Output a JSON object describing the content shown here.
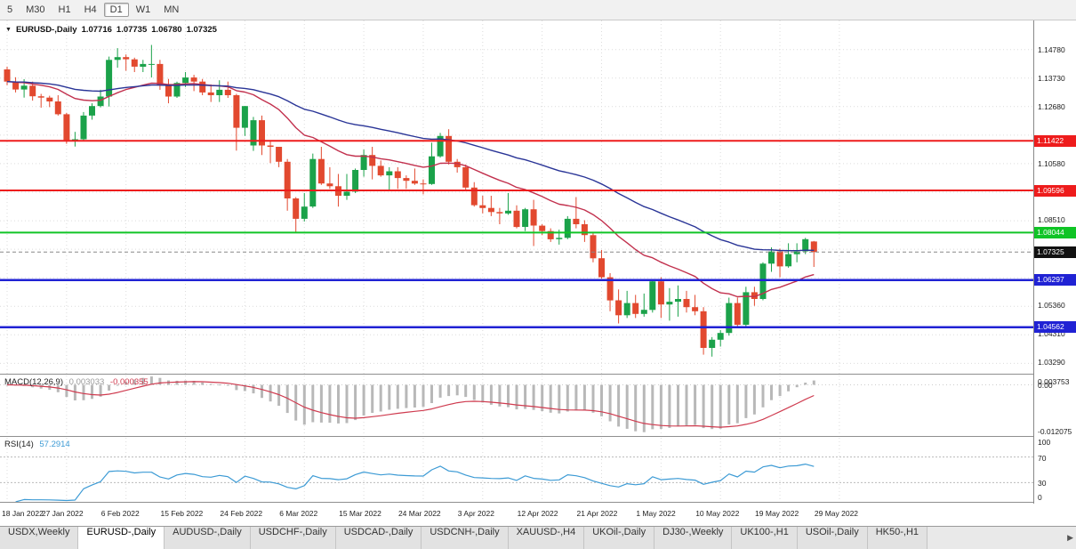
{
  "toolbar": {
    "timeframes": [
      {
        "label": "5",
        "active": false
      },
      {
        "label": "M30",
        "active": false
      },
      {
        "label": "H1",
        "active": false
      },
      {
        "label": "H4",
        "active": false
      },
      {
        "label": "D1",
        "active": true
      },
      {
        "label": "W1",
        "active": false
      },
      {
        "label": "MN",
        "active": false
      }
    ]
  },
  "chart_header": {
    "collapse_icon": "▼",
    "title": "EURUSD-,Daily",
    "open": "1.07716",
    "high": "1.07735",
    "low": "1.06780",
    "close": "1.07325"
  },
  "macd_panel": {
    "label": "MACD(12,26,9)",
    "main_value": "0.003033",
    "signal_value": "-0.000355",
    "axis_max": "0.003753",
    "axis_zero": "0.00",
    "axis_min": "-0.012075"
  },
  "rsi_panel": {
    "label": "RSI(14)",
    "value": "57.2914",
    "axis": [
      "100",
      "70",
      "30",
      "0"
    ],
    "levels": [
      70,
      30
    ]
  },
  "tabs": {
    "items": [
      {
        "label": "USDX,Weekly",
        "active": false
      },
      {
        "label": "EURUSD-,Daily",
        "active": true
      },
      {
        "label": "AUDUSD-,Daily",
        "active": false
      },
      {
        "label": "USDCHF-,Daily",
        "active": false
      },
      {
        "label": "USDCAD-,Daily",
        "active": false
      },
      {
        "label": "USDCNH-,Daily",
        "active": false
      },
      {
        "label": "XAUUSD-,H4",
        "active": false
      },
      {
        "label": "UKOil-,Daily",
        "active": false
      },
      {
        "label": "DJ30-,Weekly",
        "active": false
      },
      {
        "label": "UK100-,H1",
        "active": false
      },
      {
        "label": "USOil-,Daily",
        "active": false
      },
      {
        "label": "HK50-,H1",
        "active": false
      }
    ],
    "scroll_right_icon": "▶"
  },
  "chart_data": {
    "type": "candlestick",
    "symbol": "EURUSD-",
    "timeframe": "Daily",
    "title": "EURUSD-,Daily",
    "y_range": [
      1.0285,
      1.1585
    ],
    "current_price": 1.07325,
    "price_ticks": [
      {
        "label": "1.14780",
        "price": 1.1478
      },
      {
        "label": "1.13730",
        "price": 1.1373
      },
      {
        "label": "1.12680",
        "price": 1.1268
      },
      {
        "label": "1.10580",
        "price": 1.1058
      },
      {
        "label": "1.08510",
        "price": 1.0851
      },
      {
        "label": "1.05360",
        "price": 1.0536
      },
      {
        "label": "1.04310",
        "price": 1.0431
      },
      {
        "label": "1.03290",
        "price": 1.0329
      }
    ],
    "price_badges": [
      {
        "label": "1.11422",
        "price": 1.11422,
        "color": "#ee1c1c"
      },
      {
        "label": "1.09596",
        "price": 1.09596,
        "color": "#ee1c1c"
      },
      {
        "label": "1.08044",
        "price": 1.08044,
        "color": "#10c426"
      },
      {
        "label": "1.07325",
        "price": 1.07325,
        "color": "#111111"
      },
      {
        "label": "1.06297",
        "price": 1.06297,
        "color": "#2022d4"
      },
      {
        "label": "1.04562",
        "price": 1.04562,
        "color": "#2022d4"
      }
    ],
    "levels": [
      {
        "price": 1.11422,
        "color": "#ee1c1c",
        "width": 2
      },
      {
        "price": 1.09596,
        "color": "#ee1c1c",
        "width": 2
      },
      {
        "price": 1.08044,
        "color": "#10c426",
        "width": 2
      },
      {
        "price": 1.06297,
        "color": "#2022d4",
        "width": 2.5
      },
      {
        "price": 1.04562,
        "color": "#2022d4",
        "width": 2.5
      }
    ],
    "date_ticks": [
      "18 Jan 2022",
      "27 Jan 2022",
      "6 Feb 2022",
      "15 Feb 2022",
      "24 Feb 2022",
      "6 Mar 2022",
      "15 Mar 2022",
      "24 Mar 2022",
      "3 Apr 2022",
      "12 Apr 2022",
      "21 Apr 2022",
      "1 May 2022",
      "10 May 2022",
      "19 May 2022",
      "29 May 2022"
    ],
    "moving_averages": [
      {
        "period": 20,
        "color": "#c2314e"
      },
      {
        "period": 50,
        "color": "#2a3597"
      }
    ],
    "indicators": {
      "macd": {
        "fast": 12,
        "slow": 26,
        "signal": 9
      },
      "rsi": {
        "period": 14,
        "levels": [
          70,
          30
        ]
      }
    },
    "colors": {
      "bull": "#1ba24a",
      "bear": "#e2492f",
      "grid": "#dcdcdc",
      "macd_bar": "#b8b8b8",
      "macd_signal": "#cf3b4f",
      "rsi_line": "#3d9bd5"
    },
    "candles": [
      [
        1.1405,
        1.1415,
        1.1347,
        1.136
      ],
      [
        1.136,
        1.1376,
        1.132,
        1.1331
      ],
      [
        1.1331,
        1.1369,
        1.1301,
        1.1345
      ],
      [
        1.1345,
        1.136,
        1.129,
        1.1306
      ],
      [
        1.1306,
        1.1315,
        1.1264,
        1.1301
      ],
      [
        1.1301,
        1.1308,
        1.1266,
        1.1287
      ],
      [
        1.1287,
        1.131,
        1.1235,
        1.124
      ],
      [
        1.124,
        1.1245,
        1.1131,
        1.1145
      ],
      [
        1.1145,
        1.1175,
        1.1121,
        1.1148
      ],
      [
        1.1148,
        1.1248,
        1.114,
        1.1235
      ],
      [
        1.1235,
        1.128,
        1.122,
        1.127
      ],
      [
        1.127,
        1.133,
        1.1265,
        1.1305
      ],
      [
        1.1305,
        1.1452,
        1.1268,
        1.144
      ],
      [
        1.144,
        1.1483,
        1.1411,
        1.145
      ],
      [
        1.145,
        1.146,
        1.14,
        1.1442
      ],
      [
        1.1442,
        1.1448,
        1.1395,
        1.1415
      ],
      [
        1.1415,
        1.144,
        1.1395,
        1.1425
      ],
      [
        1.1425,
        1.1495,
        1.1375,
        1.1425
      ],
      [
        1.1425,
        1.144,
        1.133,
        1.1345
      ],
      [
        1.1345,
        1.137,
        1.128,
        1.1305
      ],
      [
        1.1305,
        1.136,
        1.13,
        1.1355
      ],
      [
        1.1355,
        1.1395,
        1.134,
        1.1375
      ],
      [
        1.1375,
        1.1385,
        1.1325,
        1.136
      ],
      [
        1.136,
        1.137,
        1.131,
        1.132
      ],
      [
        1.132,
        1.135,
        1.1285,
        1.131
      ],
      [
        1.131,
        1.1365,
        1.1285,
        1.133
      ],
      [
        1.133,
        1.136,
        1.13,
        1.131
      ],
      [
        1.131,
        1.1315,
        1.1106,
        1.119
      ],
      [
        1.119,
        1.127,
        1.116,
        1.127
      ],
      [
        1.1125,
        1.123,
        1.1105,
        1.1218
      ],
      [
        1.1218,
        1.1235,
        1.109,
        1.1125
      ],
      [
        1.1125,
        1.114,
        1.106,
        1.112
      ],
      [
        1.112,
        1.112,
        1.1045,
        1.1065
      ],
      [
        1.1065,
        1.1075,
        1.0885,
        1.093
      ],
      [
        1.093,
        1.0935,
        1.0806,
        1.0855
      ],
      [
        1.0855,
        1.095,
        1.0845,
        1.09
      ],
      [
        1.09,
        1.1095,
        1.0895,
        1.1075
      ],
      [
        1.1075,
        1.112,
        1.098,
        1.0985
      ],
      [
        1.0985,
        1.1045,
        1.0965,
        1.0975
      ],
      [
        1.0975,
        1.102,
        1.09,
        1.094
      ],
      [
        1.094,
        1.102,
        1.0925,
        1.0955
      ],
      [
        1.0955,
        1.104,
        1.095,
        1.1035
      ],
      [
        1.1035,
        1.111,
        1.101,
        1.109
      ],
      [
        1.109,
        1.112,
        1.1,
        1.105
      ],
      [
        1.105,
        1.107,
        1.101,
        1.1015
      ],
      [
        1.1015,
        1.1045,
        1.096,
        1.103
      ],
      [
        1.103,
        1.1045,
        1.0965,
        1.1005
      ],
      [
        1.1005,
        1.1015,
        1.0965,
        1.0995
      ],
      [
        1.0995,
        1.104,
        1.098,
        1.0985
      ],
      [
        1.0985,
        1.1,
        1.0945,
        1.0983
      ],
      [
        1.0983,
        1.1135,
        1.098,
        1.1085
      ],
      [
        1.1085,
        1.1171,
        1.108,
        1.116
      ],
      [
        1.116,
        1.1185,
        1.1055,
        1.1065
      ],
      [
        1.1065,
        1.1075,
        1.1025,
        1.1045
      ],
      [
        1.1045,
        1.1055,
        1.096,
        1.097
      ],
      [
        1.097,
        1.099,
        1.09,
        1.0905
      ],
      [
        1.0905,
        1.094,
        1.0875,
        1.0895
      ],
      [
        1.0895,
        1.094,
        1.0865,
        1.088
      ],
      [
        1.088,
        1.0895,
        1.0835,
        1.0875
      ],
      [
        1.0875,
        1.095,
        1.087,
        1.0885
      ],
      [
        1.0885,
        1.0905,
        1.082,
        1.0825
      ],
      [
        1.0825,
        1.0895,
        1.081,
        1.089
      ],
      [
        1.089,
        1.0925,
        1.0755,
        1.083
      ],
      [
        1.083,
        1.0835,
        1.0795,
        1.081
      ],
      [
        1.081,
        1.082,
        1.077,
        1.078
      ],
      [
        1.078,
        1.0815,
        1.076,
        1.0785
      ],
      [
        1.0785,
        1.0865,
        1.078,
        1.0855
      ],
      [
        1.0855,
        1.0935,
        1.082,
        1.0835
      ],
      [
        1.0835,
        1.085,
        1.077,
        1.0795
      ],
      [
        1.0795,
        1.0805,
        1.0695,
        1.071
      ],
      [
        1.071,
        1.074,
        1.0635,
        1.064
      ],
      [
        1.064,
        1.0655,
        1.0515,
        1.0555
      ],
      [
        1.0555,
        1.0595,
        1.047,
        1.05
      ],
      [
        1.05,
        1.059,
        1.049,
        1.0545
      ],
      [
        1.0545,
        1.0575,
        1.049,
        1.0505
      ],
      [
        1.0505,
        1.058,
        1.0495,
        1.052
      ],
      [
        1.052,
        1.063,
        1.051,
        1.0625
      ],
      [
        1.0625,
        1.064,
        1.049,
        1.054
      ],
      [
        1.054,
        1.06,
        1.048,
        1.055
      ],
      [
        1.055,
        1.061,
        1.0495,
        1.056
      ],
      [
        1.056,
        1.059,
        1.051,
        1.053
      ],
      [
        1.053,
        1.0575,
        1.05,
        1.0515
      ],
      [
        1.0515,
        1.053,
        1.0355,
        1.038
      ],
      [
        1.038,
        1.042,
        1.0348,
        1.041
      ],
      [
        1.041,
        1.0445,
        1.0385,
        1.0435
      ],
      [
        1.0435,
        1.0565,
        1.0425,
        1.0545
      ],
      [
        1.0545,
        1.0565,
        1.0455,
        1.0465
      ],
      [
        1.0465,
        1.0605,
        1.046,
        1.0585
      ],
      [
        1.0585,
        1.0605,
        1.0535,
        1.056
      ],
      [
        1.056,
        1.0695,
        1.0555,
        1.069
      ],
      [
        1.069,
        1.075,
        1.066,
        1.0735
      ],
      [
        1.0735,
        1.0745,
        1.064,
        1.068
      ],
      [
        1.068,
        1.0765,
        1.0675,
        1.0725
      ],
      [
        1.0725,
        1.0765,
        1.0695,
        1.0735
      ],
      [
        1.0735,
        1.0785,
        1.0725,
        1.078
      ],
      [
        1.07716,
        1.07735,
        1.0678,
        1.07325
      ]
    ]
  }
}
